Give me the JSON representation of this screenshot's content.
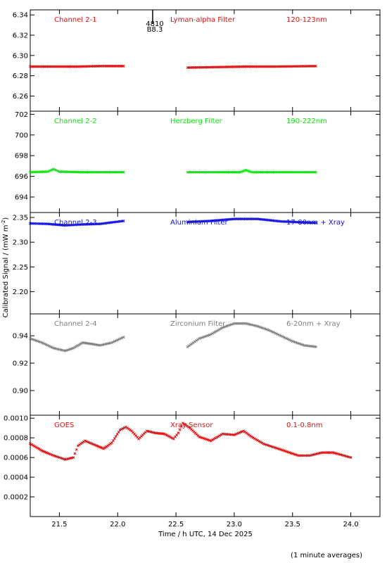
{
  "ylabel": "Calibrated Signal / (mW m",
  "ylabel_sup": "-2",
  "ylabel_end": ")",
  "xlabel": "Time / h UTC, 14 Dec 2025",
  "footer": "(1 minute averages)",
  "marker": {
    "x": 22.3,
    "line1": "4810",
    "line2": "B8.3",
    "color": "#000000"
  },
  "chart_data": [
    {
      "type": "scatter",
      "panel": "Channel 2-1",
      "labels": [
        "Channel 2-1",
        "Lyman-alpha Filter",
        "120-123nm"
      ],
      "color": "#e01010",
      "xlim": [
        21.25,
        24.25
      ],
      "ylim": [
        6.245,
        6.345
      ],
      "yticks": [
        6.26,
        6.28,
        6.3,
        6.32,
        6.34
      ],
      "ytick_labels": [
        "6.26",
        "6.28",
        "6.30",
        "6.32",
        "6.34"
      ],
      "segments": [
        {
          "x": [
            21.25,
            21.45,
            21.65,
            21.85,
            22.05
          ],
          "y": [
            6.289,
            6.289,
            6.289,
            6.2895,
            6.2895
          ]
        },
        {
          "x": [
            22.6,
            22.85,
            23.1,
            23.35,
            23.7
          ],
          "y": [
            6.288,
            6.2885,
            6.289,
            6.289,
            6.2895
          ]
        }
      ]
    },
    {
      "type": "scatter",
      "panel": "Channel 2-2",
      "labels": [
        "Channel 2-2",
        "Herzberg Filter",
        "190-222nm"
      ],
      "color": "#10e010",
      "xlim": [
        21.25,
        24.25
      ],
      "ylim": [
        692.5,
        702.3
      ],
      "yticks": [
        694,
        696,
        698,
        700,
        702
      ],
      "ytick_labels": [
        "694",
        "696",
        "698",
        "700",
        "702"
      ],
      "segments": [
        {
          "x": [
            21.25,
            21.4,
            21.45,
            21.5,
            21.7,
            21.9,
            22.05
          ],
          "y": [
            696.4,
            696.45,
            696.7,
            696.45,
            696.4,
            696.4,
            696.4
          ]
        },
        {
          "x": [
            22.6,
            22.85,
            23.05,
            23.1,
            23.15,
            23.4,
            23.7
          ],
          "y": [
            696.4,
            696.4,
            696.4,
            696.6,
            696.4,
            696.4,
            696.4
          ]
        }
      ]
    },
    {
      "type": "scatter",
      "panel": "Channel 2-3",
      "labels": [
        "Channel 2-3",
        "Aluminium Filter",
        "17-80nm + Xray"
      ],
      "color": "#1010e0",
      "xlim": [
        21.25,
        24.25
      ],
      "ylim": [
        2.155,
        2.36
      ],
      "yticks": [
        2.2,
        2.25,
        2.3,
        2.35
      ],
      "ytick_labels": [
        "2.20",
        "2.25",
        "2.30",
        "2.35"
      ],
      "segments": [
        {
          "x": [
            21.25,
            21.4,
            21.55,
            21.7,
            21.85,
            22.05
          ],
          "y": [
            2.338,
            2.337,
            2.334,
            2.336,
            2.337,
            2.343
          ]
        },
        {
          "x": [
            22.6,
            22.8,
            23.0,
            23.2,
            23.4,
            23.7
          ],
          "y": [
            2.341,
            2.343,
            2.347,
            2.347,
            2.342,
            2.339
          ]
        }
      ]
    },
    {
      "type": "scatter",
      "panel": "Channel 2-4",
      "labels": [
        "Channel 2-4",
        "Zirconium Filter",
        "6-20nm + Xray"
      ],
      "color": "#808080",
      "xlim": [
        21.25,
        24.25
      ],
      "ylim": [
        0.882,
        0.956
      ],
      "yticks": [
        0.9,
        0.92,
        0.94
      ],
      "ytick_labels": [
        "0.90",
        "0.92",
        "0.94"
      ],
      "segments": [
        {
          "x": [
            21.25,
            21.35,
            21.45,
            21.55,
            21.62,
            21.7,
            21.78,
            21.85,
            21.95,
            22.05
          ],
          "y": [
            0.938,
            0.935,
            0.931,
            0.929,
            0.931,
            0.935,
            0.934,
            0.933,
            0.935,
            0.939
          ]
        },
        {
          "x": [
            22.6,
            22.7,
            22.8,
            22.9,
            23.0,
            23.1,
            23.2,
            23.3,
            23.4,
            23.5,
            23.6,
            23.7
          ],
          "y": [
            0.932,
            0.938,
            0.941,
            0.946,
            0.949,
            0.949,
            0.947,
            0.944,
            0.94,
            0.936,
            0.933,
            0.932
          ]
        }
      ]
    },
    {
      "type": "scatter",
      "panel": "GOES",
      "labels": [
        "GOES",
        "Xray Sensor",
        "0.1-0.8nm"
      ],
      "color": "#e01010",
      "xlim": [
        21.25,
        24.25
      ],
      "ylim": [
        0.0,
        0.00103
      ],
      "yticks": [
        0.0002,
        0.0004,
        0.0006,
        0.0008,
        0.001
      ],
      "ytick_labels": [
        "0.0002",
        "0.0004",
        "0.0006",
        "0.0008",
        "0.0010"
      ],
      "segments": [
        {
          "x": [
            21.25,
            21.35,
            21.45,
            21.55,
            21.62,
            21.66,
            21.72,
            21.8,
            21.88,
            21.95,
            22.02,
            22.07,
            22.12,
            22.18,
            22.25,
            22.32,
            22.4,
            22.48,
            22.52,
            22.56,
            22.62,
            22.7,
            22.8,
            22.9,
            23.0,
            23.08,
            23.15,
            23.25,
            23.35,
            23.45,
            23.55,
            23.65,
            23.75,
            23.85,
            24.0
          ],
          "y": [
            0.00074,
            0.00067,
            0.00062,
            0.00058,
            0.0006,
            0.00072,
            0.00077,
            0.00073,
            0.00069,
            0.00075,
            0.00088,
            0.00091,
            0.00087,
            0.00079,
            0.00087,
            0.00085,
            0.00084,
            0.00079,
            0.00085,
            0.00095,
            0.0009,
            0.00081,
            0.00077,
            0.00084,
            0.00083,
            0.00087,
            0.00081,
            0.00074,
            0.0007,
            0.00066,
            0.00062,
            0.00062,
            0.00065,
            0.00065,
            0.0006
          ]
        }
      ]
    }
  ],
  "xaxis": {
    "ticks": [
      21.5,
      22.0,
      22.5,
      23.0,
      23.5,
      24.0
    ],
    "tick_labels": [
      "21.5",
      "22.0",
      "22.5",
      "23.0",
      "23.5",
      "24.0"
    ]
  }
}
